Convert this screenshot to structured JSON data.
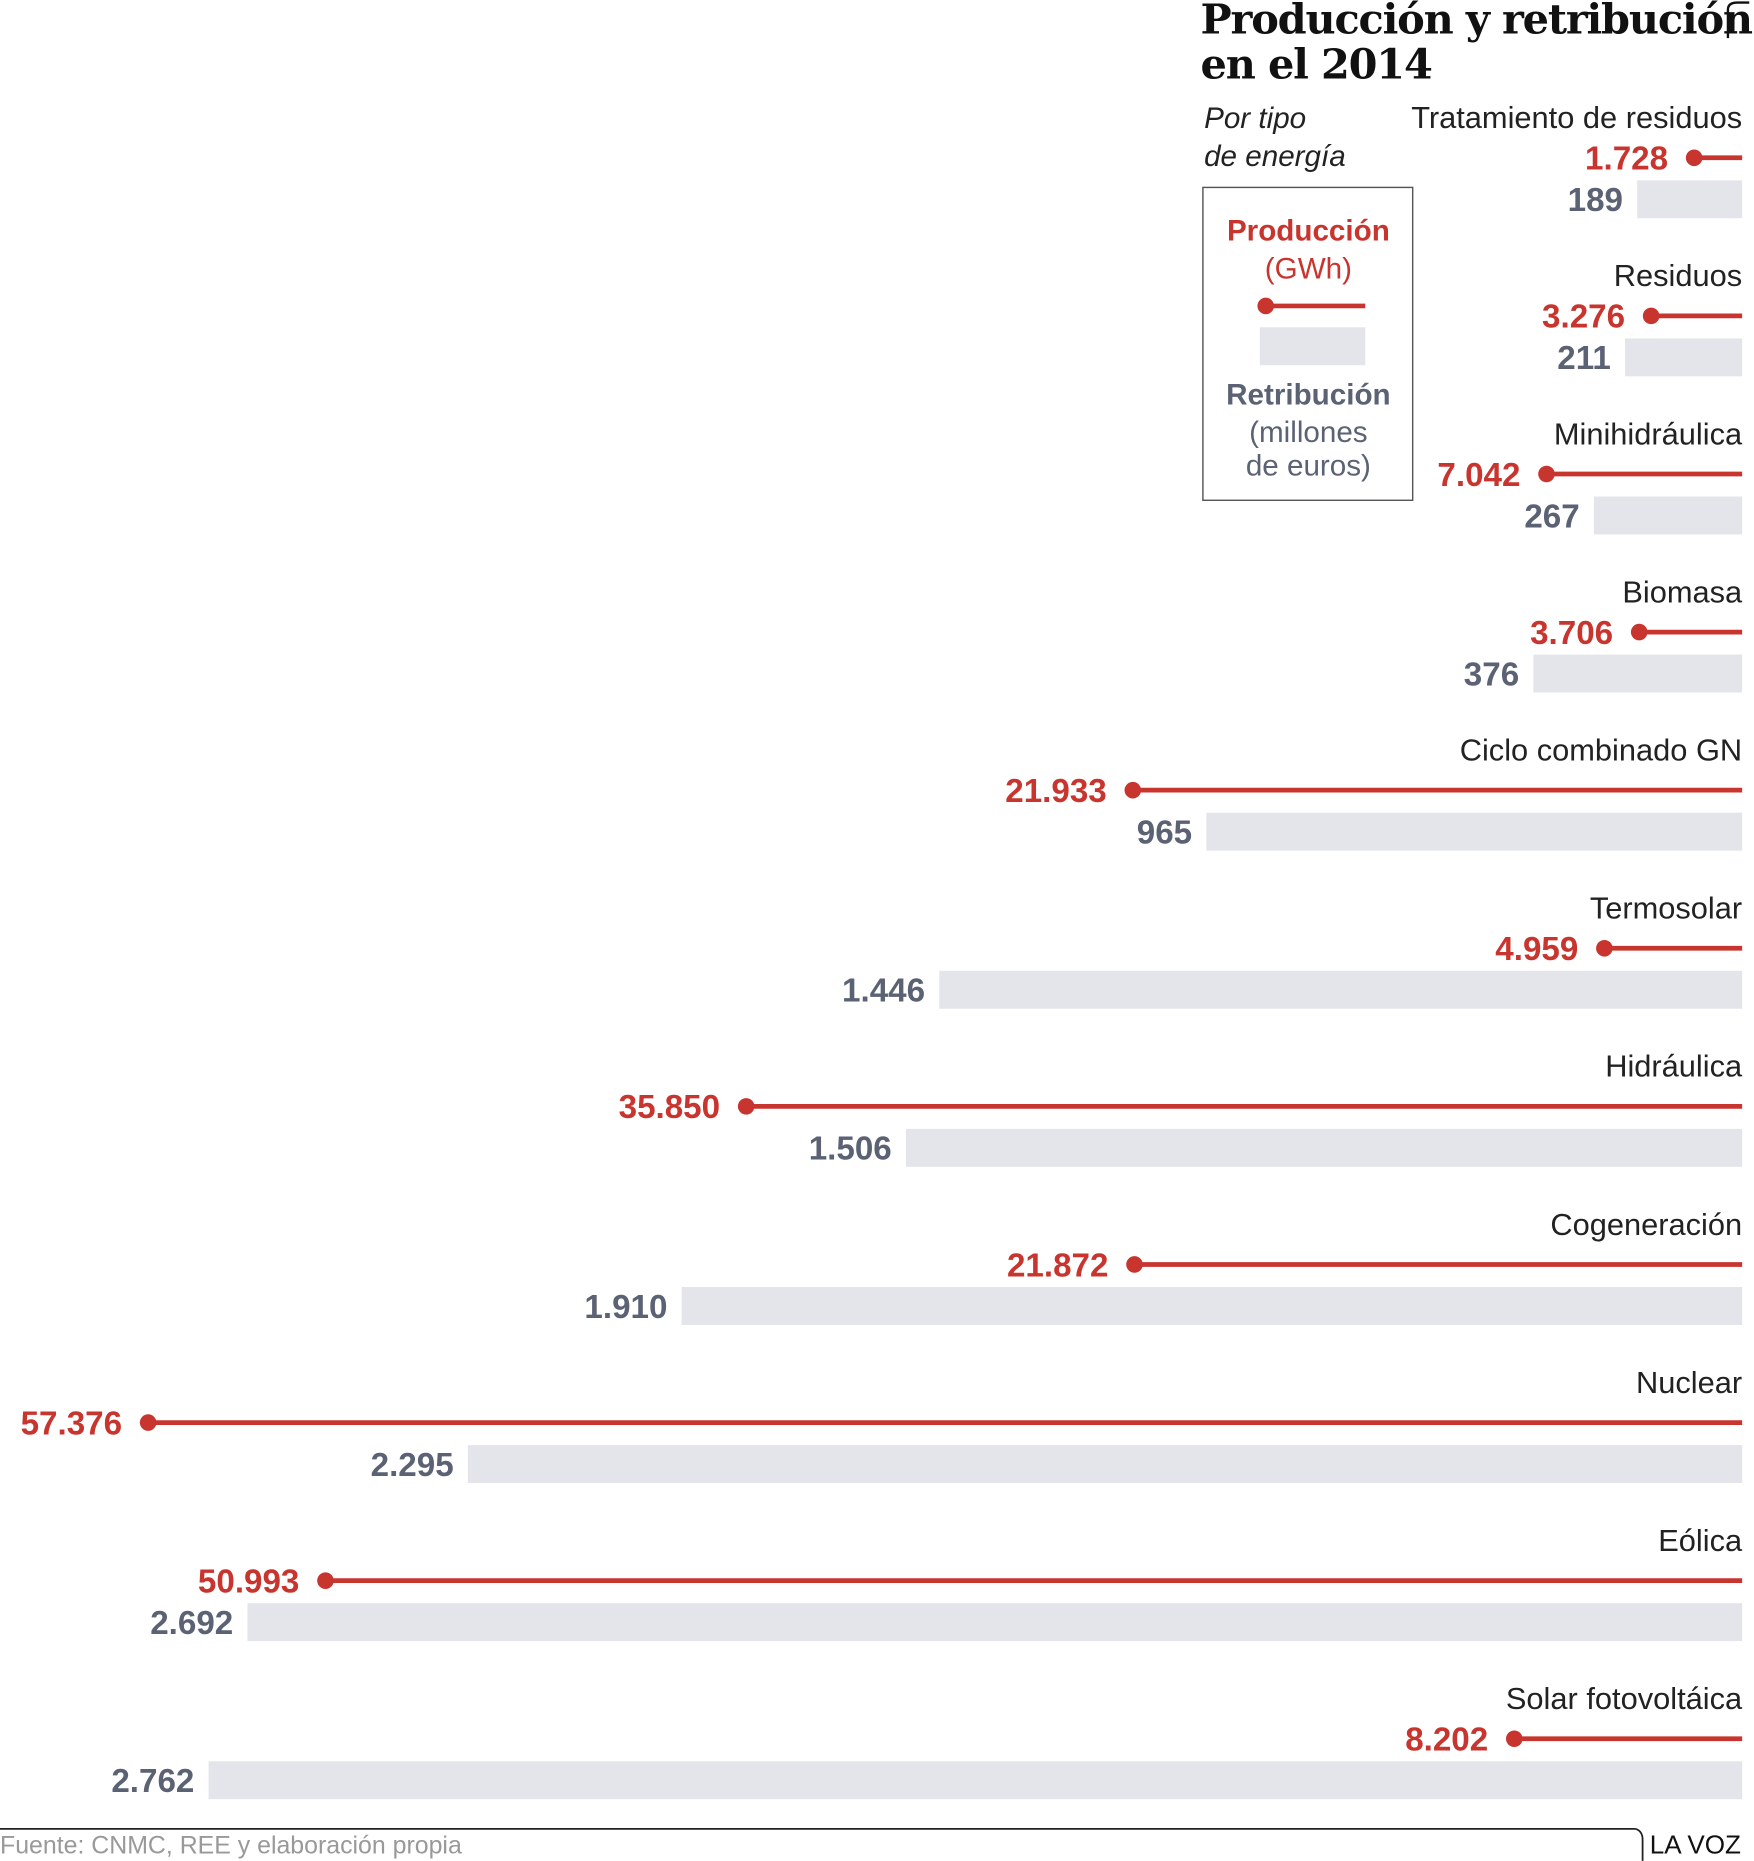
{
  "chart_data": {
    "type": "paired-bar",
    "title": [
      "Producción y retribución",
      "en el 2014"
    ],
    "subtitle": [
      "Por tipo",
      "de energía"
    ],
    "categories": [
      "Tratamiento de residuos",
      "Residuos",
      "Minihidráulica",
      "Biomasa",
      "Ciclo combinado GN",
      "Termosolar",
      "Hidráulica",
      "Cogeneración",
      "Nuclear",
      "Eólica",
      "Solar fotovoltáica"
    ],
    "series": [
      {
        "name": "Producción",
        "unit": [
          "(GWh)"
        ],
        "color": "#c8352f",
        "values": [
          1728,
          3276,
          7042,
          3706,
          21933,
          4959,
          35850,
          21872,
          57376,
          50993,
          8202
        ],
        "value_labels": [
          "1.728",
          "3.276",
          "7.042",
          "3.706",
          "21.933",
          "4.959",
          "35.850",
          "21.872",
          "57.376",
          "50.993",
          "8.202"
        ]
      },
      {
        "name": "Retribución",
        "unit": [
          "(millones",
          "de euros)"
        ],
        "color": "#e4e5ea",
        "label_color": "#5b6274",
        "values": [
          189,
          211,
          267,
          376,
          965,
          1446,
          1506,
          1910,
          2295,
          2692,
          2762
        ],
        "value_labels": [
          "189",
          "211",
          "267",
          "376",
          "965",
          "1.446",
          "1.506",
          "1.910",
          "2.295",
          "2.692",
          "2.762"
        ]
      }
    ],
    "source": "Fuente: CNMC, REE y elaboración propia",
    "brand": "LA VOZ"
  }
}
